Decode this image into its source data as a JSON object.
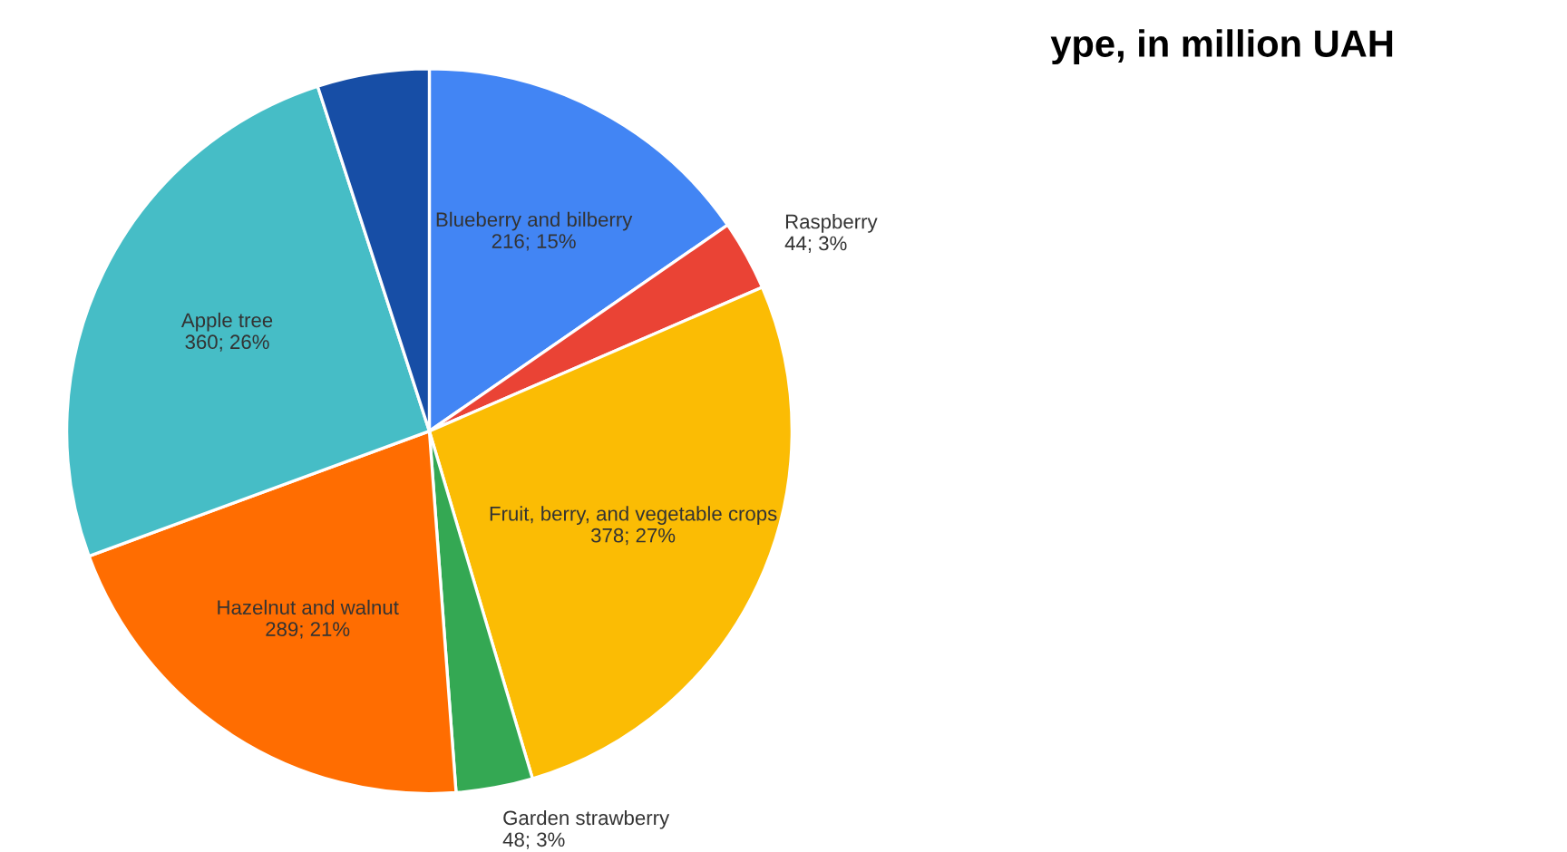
{
  "chart_data": {
    "type": "pie",
    "title": "ype, in million UAH",
    "categories": [
      "Blueberry and bilberry",
      "Raspberry",
      "Fruit, berry, and vegetable crops",
      "Garden strawberry",
      "Hazelnut and walnut",
      "Apple tree",
      null
    ],
    "values": [
      216,
      44,
      378,
      48,
      289,
      360,
      70
    ],
    "value_labels": [
      "216; 15%",
      "44; 3%",
      "378; 27%",
      "48; 3%",
      "289; 21%",
      "360; 26%",
      null
    ],
    "colors": [
      "#4285f4",
      "#ea4335",
      "#fbbc04",
      "#34a853",
      "#ff6d01",
      "#46bdc6",
      "#174ea6"
    ]
  }
}
